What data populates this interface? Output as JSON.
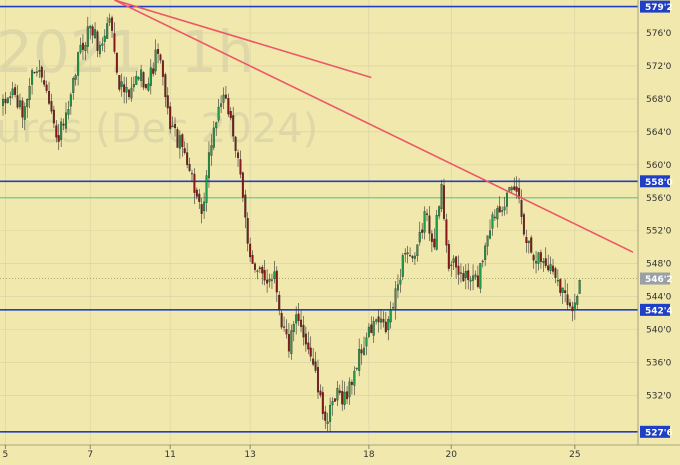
{
  "watermark": {
    "line1": "2021, 1h",
    "line2": "ures (Dec 2024)"
  },
  "colors": {
    "background": "#f0e8ac",
    "grid": "#d7d2a6",
    "level_line": "#1f3fc4",
    "green_line": "#66cc99",
    "trend_line": "#ee5566",
    "candle_up": "#1e9e4a",
    "candle_down": "#8a1818",
    "price_tag": "#1f3fc4",
    "current_tag": "#9aa0a6"
  },
  "chart_data": {
    "type": "candlestick",
    "ylim": [
      526,
      580
    ],
    "y_ticks": [
      528,
      532,
      536,
      540,
      544,
      548,
      552,
      556,
      560,
      564,
      568,
      572,
      576
    ],
    "y_tick_labels": [
      "532'0",
      "536'0",
      "540'0",
      "544'0",
      "548'0",
      "552'0",
      "556'0",
      "560'0",
      "564'0",
      "568'0",
      "572'0",
      "576'0"
    ],
    "y_tick_values": [
      532,
      536,
      540,
      544,
      548,
      552,
      556,
      560,
      564,
      568,
      572,
      576
    ],
    "x_ticks": [
      {
        "label": "5",
        "index": 1
      },
      {
        "label": "7",
        "index": 36
      },
      {
        "label": "11",
        "index": 69
      },
      {
        "label": "13",
        "index": 102
      },
      {
        "label": "18",
        "index": 151
      },
      {
        "label": "20",
        "index": 185
      },
      {
        "label": "25",
        "index": 236
      }
    ],
    "levels": [
      {
        "value": 579.2,
        "label": "579'2",
        "color": "#1f3fc4"
      },
      {
        "value": 558.0,
        "label": "558'0",
        "color": "#1f3fc4"
      },
      {
        "value": 542.4,
        "label": "542'4",
        "color": "#1f3fc4"
      },
      {
        "value": 527.6,
        "label": "527'6",
        "color": "#1f3fc4"
      }
    ],
    "green_level": 556.0,
    "current_price": {
      "value": 546.2,
      "label": "546'2"
    },
    "trendlines": [
      {
        "from": {
          "index": 46,
          "value": 580.0
        },
        "to": {
          "index": 152,
          "value": 570.6
        }
      },
      {
        "from": {
          "index": 46,
          "value": 580.0
        },
        "to": {
          "index": 260,
          "value": 549.4
        }
      }
    ],
    "anchors": [
      [
        0,
        567
      ],
      [
        4,
        569
      ],
      [
        8,
        566
      ],
      [
        13,
        572
      ],
      [
        18,
        570
      ],
      [
        22,
        563
      ],
      [
        27,
        566
      ],
      [
        31,
        573
      ],
      [
        36,
        577
      ],
      [
        40,
        574
      ],
      [
        44,
        578
      ],
      [
        48,
        570
      ],
      [
        52,
        568
      ],
      [
        56,
        571
      ],
      [
        60,
        570
      ],
      [
        64,
        574
      ],
      [
        68,
        566
      ],
      [
        72,
        563
      ],
      [
        76,
        561
      ],
      [
        80,
        556
      ],
      [
        82,
        553
      ],
      [
        86,
        563
      ],
      [
        90,
        568
      ],
      [
        94,
        566
      ],
      [
        98,
        558
      ],
      [
        101,
        551
      ],
      [
        104,
        547
      ],
      [
        108,
        546
      ],
      [
        112,
        547
      ],
      [
        115,
        541
      ],
      [
        118,
        538
      ],
      [
        121,
        541
      ],
      [
        125,
        539
      ],
      [
        128,
        536
      ],
      [
        131,
        531
      ],
      [
        134,
        529
      ],
      [
        138,
        532
      ],
      [
        142,
        532
      ],
      [
        146,
        536
      ],
      [
        150,
        539
      ],
      [
        154,
        541
      ],
      [
        158,
        540
      ],
      [
        162,
        544
      ],
      [
        166,
        550
      ],
      [
        170,
        548
      ],
      [
        174,
        554
      ],
      [
        178,
        551
      ],
      [
        181,
        557
      ],
      [
        184,
        548
      ],
      [
        188,
        547
      ],
      [
        192,
        546
      ],
      [
        196,
        546
      ],
      [
        200,
        552
      ],
      [
        204,
        555
      ],
      [
        208,
        556
      ],
      [
        212,
        557
      ],
      [
        216,
        551
      ],
      [
        220,
        549
      ],
      [
        224,
        548
      ],
      [
        228,
        547
      ],
      [
        232,
        544
      ],
      [
        236,
        543
      ],
      [
        238,
        546
      ]
    ]
  }
}
